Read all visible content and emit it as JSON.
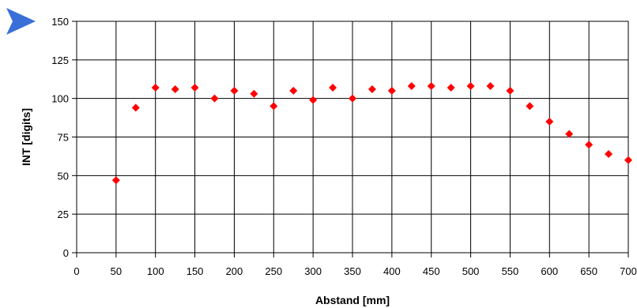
{
  "chart_data": {
    "type": "scatter",
    "title": "",
    "xlabel": "Abstand [mm]",
    "ylabel": "INT [digits]",
    "xlim": [
      0,
      700
    ],
    "ylim": [
      0,
      150
    ],
    "x_ticks": [
      0,
      50,
      100,
      150,
      200,
      250,
      300,
      350,
      400,
      450,
      500,
      550,
      600,
      650,
      700
    ],
    "y_ticks": [
      0,
      25,
      50,
      75,
      100,
      125,
      150
    ],
    "grid": true,
    "legend": "none",
    "marker": "diamond",
    "marker_color": "#ff0000",
    "series": [
      {
        "x": [
          50,
          75,
          100,
          125,
          150,
          175,
          200,
          225,
          250,
          275,
          300,
          325,
          350,
          375,
          400,
          425,
          450,
          475,
          500,
          525,
          550,
          575,
          600,
          625,
          650,
          675,
          700
        ],
        "y": [
          47,
          94,
          107,
          106,
          107,
          100,
          105,
          103,
          95,
          105,
          99,
          107,
          100,
          106,
          105,
          108,
          108,
          107,
          108,
          108,
          105,
          95,
          85,
          77,
          70,
          64,
          60
        ]
      }
    ]
  },
  "decor": {
    "pointer_icon": "blue-triangle-pointer-icon",
    "pointer_color": "#3a6fd8"
  }
}
